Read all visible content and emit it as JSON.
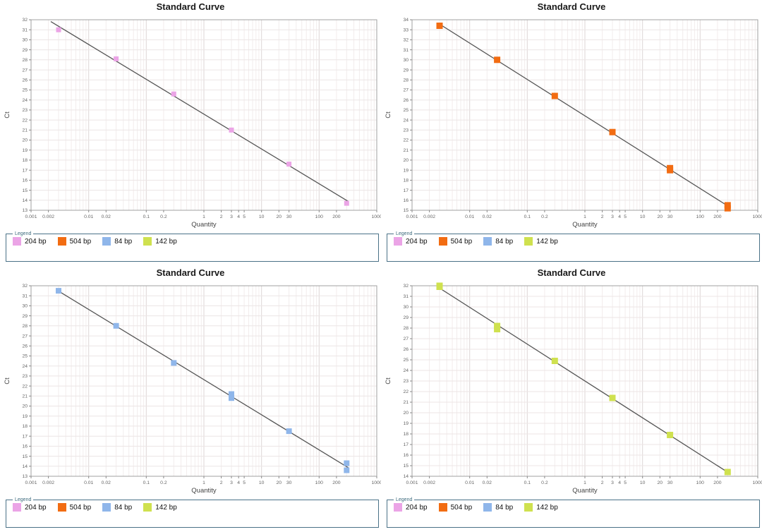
{
  "legend": {
    "title": "Legend",
    "items": [
      {
        "label": "204 bp",
        "color": "#eba4e6"
      },
      {
        "label": "504 bp",
        "color": "#f26c12"
      },
      {
        "label": "84 bp",
        "color": "#8fb6ea"
      },
      {
        "label": "142 bp",
        "color": "#cfe14f"
      }
    ]
  },
  "colors": {
    "trend_line": "#555555",
    "plot_frame": "#a0a0a0",
    "grid_minor": "#f2ecec",
    "grid_decade": "#ddd6d6",
    "grid_horizontal": "#ece5e5",
    "tick_text": "#666666",
    "axis_label_text": "#444444"
  },
  "chart_data": [
    {
      "type": "scatter",
      "title": "Standard Curve",
      "xlabel": "Quantity",
      "ylabel": "Ct",
      "x_scale": "log",
      "xlim": [
        0.001,
        1000
      ],
      "ylim": [
        13,
        32
      ],
      "ytick_step": 1,
      "xticks": [
        0.001,
        0.002,
        0.01,
        0.02,
        0.1,
        0.2,
        1,
        2,
        3,
        4,
        5,
        10,
        20,
        30,
        100,
        200,
        1000
      ],
      "grid": true,
      "legend_position": "bottom",
      "series": [
        {
          "name": "204 bp",
          "color": "#eba4e6",
          "marker": "square",
          "marker_size": 7,
          "points": [
            [
              0.003,
              31.0
            ],
            [
              0.03,
              28.1
            ],
            [
              0.3,
              24.6
            ],
            [
              3,
              21.0
            ],
            [
              30,
              17.6
            ],
            [
              300,
              13.7
            ]
          ]
        }
      ],
      "trend_line": {
        "x_range": [
          0.0022,
          320
        ]
      }
    },
    {
      "type": "scatter",
      "title": "Standard Curve",
      "xlabel": "Quantity",
      "ylabel": "Ct",
      "x_scale": "log",
      "xlim": [
        0.001,
        1000
      ],
      "ylim": [
        15,
        34
      ],
      "ytick_step": 1,
      "xticks": [
        0.001,
        0.002,
        0.01,
        0.02,
        0.1,
        0.2,
        1,
        2,
        3,
        4,
        5,
        10,
        20,
        30,
        100,
        200,
        1000
      ],
      "grid": true,
      "legend_position": "bottom",
      "series": [
        {
          "name": "504 bp",
          "color": "#f26c12",
          "marker": "square",
          "marker_size": 9,
          "points": [
            [
              0.003,
              33.4
            ],
            [
              0.03,
              30.0
            ],
            [
              0.3,
              26.4
            ],
            [
              3,
              22.8
            ],
            [
              30,
              19.2
            ],
            [
              30,
              19.0
            ],
            [
              300,
              15.5
            ],
            [
              300,
              15.2
            ]
          ]
        }
      ],
      "trend_line": {
        "x_range": [
          0.003,
          320
        ]
      }
    },
    {
      "type": "scatter",
      "title": "Standard Curve",
      "xlabel": "Quantity",
      "ylabel": "Ct",
      "x_scale": "log",
      "xlim": [
        0.001,
        1000
      ],
      "ylim": [
        13,
        32
      ],
      "ytick_step": 1,
      "xticks": [
        0.001,
        0.002,
        0.01,
        0.02,
        0.1,
        0.2,
        1,
        2,
        3,
        4,
        5,
        10,
        20,
        30,
        100,
        200,
        1000
      ],
      "grid": true,
      "legend_position": "bottom",
      "series": [
        {
          "name": "84 bp",
          "color": "#8fb6ea",
          "marker": "square",
          "marker_size": 8,
          "points": [
            [
              0.003,
              31.5
            ],
            [
              0.03,
              28.0
            ],
            [
              0.3,
              24.3
            ],
            [
              3,
              21.2
            ],
            [
              3,
              20.8
            ],
            [
              30,
              17.5
            ],
            [
              300,
              14.3
            ],
            [
              300,
              13.6
            ]
          ]
        }
      ],
      "trend_line": {
        "x_range": [
          0.003,
          320
        ]
      }
    },
    {
      "type": "scatter",
      "title": "Standard Curve",
      "xlabel": "Quantity",
      "ylabel": "Ct",
      "x_scale": "log",
      "xlim": [
        0.001,
        1000
      ],
      "ylim": [
        14,
        32
      ],
      "ytick_step": 1,
      "xticks": [
        0.001,
        0.002,
        0.01,
        0.02,
        0.1,
        0.2,
        1,
        2,
        3,
        4,
        5,
        10,
        20,
        30,
        100,
        200,
        1000
      ],
      "grid": true,
      "legend_position": "bottom",
      "series": [
        {
          "name": "142 bp",
          "color": "#cfe14f",
          "marker": "square",
          "marker_size": 9,
          "points": [
            [
              0.003,
              32.0
            ],
            [
              0.003,
              31.9
            ],
            [
              0.03,
              28.2
            ],
            [
              0.03,
              27.9
            ],
            [
              0.3,
              24.9
            ],
            [
              3,
              21.4
            ],
            [
              30,
              17.9
            ],
            [
              300,
              14.4
            ]
          ]
        }
      ],
      "trend_line": {
        "x_range": [
          0.003,
          320
        ]
      }
    }
  ]
}
